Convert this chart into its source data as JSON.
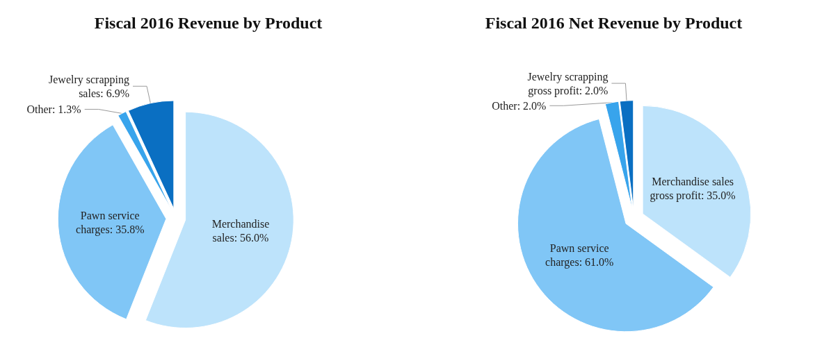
{
  "chart_data": [
    {
      "type": "pie",
      "title": "Fiscal 2016 Revenue by Product",
      "categories": [
        "Merchandise sales",
        "Pawn service charges",
        "Other",
        "Jewelry scrapping sales"
      ],
      "values": [
        56.0,
        35.8,
        1.3,
        6.9
      ],
      "value_labels": [
        "56.0%",
        "35.8%",
        "1.3%",
        "6.9%"
      ],
      "colors": [
        "#bde3fb",
        "#80c6f6",
        "#38a4ec",
        "#0a6fc2"
      ]
    },
    {
      "type": "pie",
      "title": "Fiscal 2016 Net Revenue by Product",
      "categories": [
        "Merchandise sales gross profit",
        "Pawn service charges",
        "Other",
        "Jewelry scrapping gross profit"
      ],
      "values": [
        35.0,
        61.0,
        2.0,
        2.0
      ],
      "value_labels": [
        "35.0%",
        "61.0%",
        "2.0%",
        "2.0%"
      ],
      "colors": [
        "#bde3fb",
        "#80c6f6",
        "#38a4ec",
        "#0a6fc2"
      ]
    }
  ]
}
